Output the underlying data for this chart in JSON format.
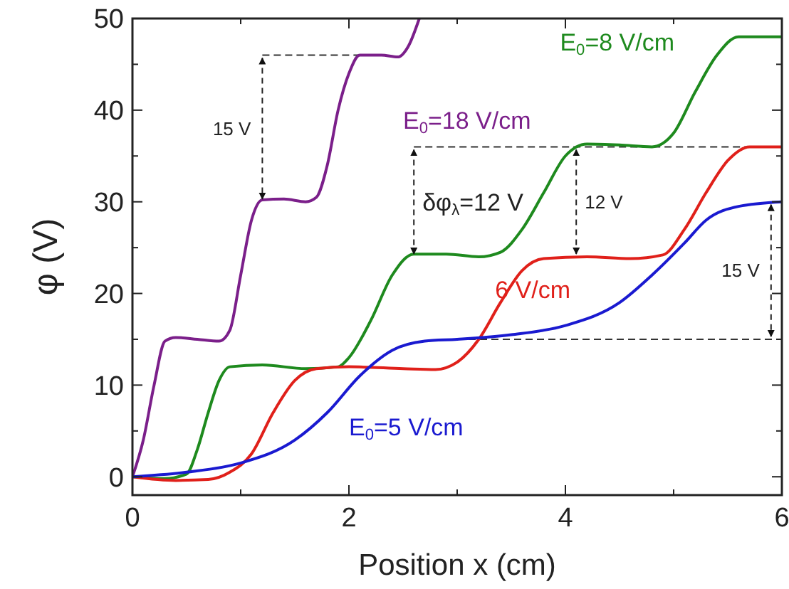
{
  "chart_data": {
    "type": "line",
    "xlabel": "Position x (cm)",
    "ylabel": "φ (V)",
    "xlim": [
      0,
      6
    ],
    "ylim": [
      -2,
      50
    ],
    "xticks": [
      0,
      {
        "value": 1,
        "label": null
      },
      2,
      {
        "value": 3,
        "label": null
      },
      4,
      {
        "value": 5,
        "label": null
      },
      6
    ],
    "yticks": [
      0,
      {
        "value": 5,
        "label": null
      },
      10,
      {
        "value": 15,
        "label": null
      },
      20,
      {
        "value": 25,
        "label": null
      },
      30,
      {
        "value": 35,
        "label": null
      },
      40,
      {
        "value": 45,
        "label": null
      },
      50
    ],
    "grid": false,
    "marker": "none",
    "line_style": "solid",
    "series": [
      {
        "name": "E$_{0}$=18 V/cm",
        "color": "#7b1f8a",
        "x": [
          0,
          0.1,
          0.2,
          0.3,
          0.4,
          0.6,
          0.8,
          0.9,
          1.0,
          1.1,
          1.2,
          1.4,
          1.6,
          1.7,
          1.8,
          1.9,
          2.0,
          2.1,
          2.3,
          2.45,
          2.55,
          2.65
        ],
        "values": [
          0,
          4,
          10,
          14.8,
          15.2,
          15,
          14.8,
          16,
          22,
          28,
          30.2,
          30.3,
          30,
          30.5,
          34,
          40,
          44,
          46,
          46,
          45.8,
          47,
          50
        ]
      },
      {
        "name": "E$_{0}$=8 V/cm",
        "color": "#1e8a1e",
        "x": [
          0,
          0.3,
          0.5,
          0.6,
          0.7,
          0.8,
          0.9,
          1.2,
          1.6,
          1.9,
          2.0,
          2.2,
          2.4,
          2.6,
          2.9,
          3.2,
          3.4,
          3.6,
          3.8,
          4.0,
          4.2,
          4.5,
          4.8,
          5.0,
          5.2,
          5.4,
          5.6,
          6
        ],
        "values": [
          0,
          -0.2,
          0.3,
          3,
          7,
          10.5,
          12,
          12.2,
          11.8,
          12,
          13,
          17,
          22,
          24.3,
          24.3,
          24,
          24.5,
          27,
          31,
          35,
          36.3,
          36.2,
          36,
          37.5,
          42,
          46,
          48,
          48
        ]
      },
      {
        "name": "6 V/cm",
        "color": "#e0201a",
        "x": [
          0,
          0.4,
          0.7,
          0.9,
          1.1,
          1.3,
          1.5,
          1.7,
          2.0,
          2.5,
          2.8,
          3.0,
          3.2,
          3.4,
          3.6,
          3.8,
          4.2,
          4.6,
          4.9,
          5.1,
          5.3,
          5.5,
          5.7,
          6
        ],
        "values": [
          0,
          -0.4,
          -0.3,
          0.5,
          2.5,
          7,
          10.5,
          11.8,
          12,
          11.8,
          11.7,
          12.5,
          15,
          19,
          22.5,
          23.8,
          24,
          23.8,
          24.2,
          27,
          31,
          34.5,
          36,
          36
        ]
      },
      {
        "name": "E$_{0}$=5 V/cm",
        "color": "#1a1ad0",
        "x": [
          0,
          0.5,
          1.0,
          1.5,
          1.8,
          2.1,
          2.4,
          2.7,
          3.0,
          3.5,
          4.0,
          4.5,
          4.8,
          5.1,
          5.3,
          5.6,
          6
        ],
        "values": [
          0,
          0.5,
          1.5,
          4,
          7,
          11,
          13.8,
          14.8,
          15,
          15.5,
          16.5,
          19,
          22,
          25.5,
          28,
          29.5,
          30
        ]
      }
    ],
    "ref_lines": [
      {
        "axis": "y",
        "value": 46,
        "line_style": "dashed",
        "color": "#333333"
      },
      {
        "axis": "y",
        "value": 36,
        "line_style": "dashed",
        "color": "#333333"
      },
      {
        "axis": "y",
        "value": 15,
        "line_style": "dashed",
        "color": "#333333"
      }
    ],
    "annotations": [
      "15 V",
      "δφ$_{λ}$=12 V",
      "12 V",
      "15 V"
    ]
  }
}
